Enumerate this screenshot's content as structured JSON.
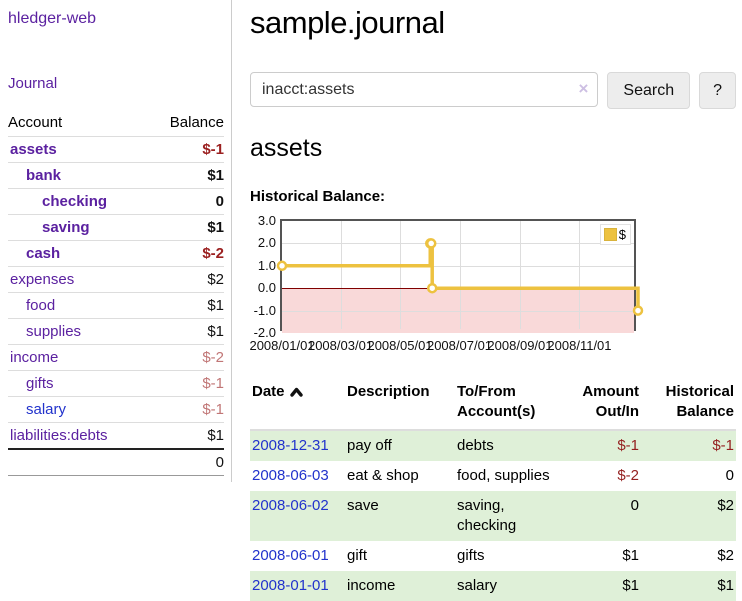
{
  "colors": {
    "link_purple": "#5b21a0",
    "link_blue": "#2233cc",
    "negative_dark": "#9b2020",
    "negative_light": "#c17676",
    "register_negative": "#941f1f",
    "row_stripe_green": "#dff0d8",
    "series_gold": "#edc240"
  },
  "sidebar": {
    "brand": "hledger-web",
    "journal_label": "Journal",
    "accounts": {
      "headers": {
        "account": "Account",
        "balance": "Balance"
      },
      "rows": [
        {
          "label": "assets",
          "indent": 0,
          "bold": true,
          "balance": "$-1",
          "amount_color": "negative",
          "link_color": "purple"
        },
        {
          "label": "bank",
          "indent": 1,
          "bold": true,
          "balance": "$1",
          "amount_color": "normal",
          "link_color": "purple"
        },
        {
          "label": "checking",
          "indent": 2,
          "bold": true,
          "balance": "0",
          "amount_color": "normal",
          "link_color": "purple"
        },
        {
          "label": "saving",
          "indent": 2,
          "bold": true,
          "balance": "$1",
          "amount_color": "normal",
          "link_color": "purple"
        },
        {
          "label": "cash",
          "indent": 1,
          "bold": true,
          "balance": "$-2",
          "amount_color": "negative",
          "link_color": "purple"
        },
        {
          "label": "expenses",
          "indent": 0,
          "bold": false,
          "balance": "$2",
          "amount_color": "normal",
          "link_color": "purple"
        },
        {
          "label": "food",
          "indent": 1,
          "bold": false,
          "balance": "$1",
          "amount_color": "normal",
          "link_color": "purple"
        },
        {
          "label": "supplies",
          "indent": 1,
          "bold": false,
          "balance": "$1",
          "amount_color": "normal",
          "link_color": "purple"
        },
        {
          "label": "income",
          "indent": 0,
          "bold": false,
          "balance": "$-2",
          "amount_color": "negative-light",
          "link_color": "purple"
        },
        {
          "label": "gifts",
          "indent": 1,
          "bold": false,
          "balance": "$-1",
          "amount_color": "negative-light",
          "link_color": "purple"
        },
        {
          "label": "salary",
          "indent": 1,
          "bold": false,
          "balance": "$-1",
          "amount_color": "negative-light",
          "link_color": "blue"
        },
        {
          "label": "liabilities:debts",
          "indent": 0,
          "bold": false,
          "balance": "$1",
          "amount_color": "normal",
          "link_color": "purple"
        }
      ],
      "total": "0"
    }
  },
  "main": {
    "title": "sample.journal",
    "search": {
      "value": "inacct:assets",
      "clear_icon": "×",
      "search_button": "Search",
      "help_button": "?"
    },
    "account_heading": "assets",
    "chart_label": "Historical Balance:"
  },
  "chart_data": {
    "type": "line",
    "title": "Historical Balance",
    "step": true,
    "series": [
      {
        "name": "$",
        "color": "#edc240",
        "points": [
          [
            "2008-01-01",
            1
          ],
          [
            "2008-06-01",
            2
          ],
          [
            "2008-06-02",
            2
          ],
          [
            "2008-06-03",
            0
          ],
          [
            "2008-12-31",
            -1
          ]
        ]
      }
    ],
    "xlim": [
      "2008-01-01",
      "2008-12-31"
    ],
    "ylim": [
      -2,
      3
    ],
    "yticks": [
      "3.0",
      "2.0",
      "1.0",
      "0.0",
      "-1.0",
      "-2.0"
    ],
    "xticks": [
      "2008/01/01",
      "2008/03/01",
      "2008/05/01",
      "2008/07/01",
      "2008/09/01",
      "2008/11/01"
    ],
    "grid": true,
    "legend_position": "top-right",
    "negative_region_color": "#f9d9d9",
    "zero_line_color": "#800000"
  },
  "register": {
    "headers": {
      "date": "Date",
      "description": "Description",
      "accounts": "To/From Account(s)",
      "amount": "Amount Out/In",
      "balance": "Historical Balance"
    },
    "sort": {
      "column": "date",
      "direction": "ascending-arrow"
    },
    "rows": [
      {
        "date": "2008-12-31",
        "description": "pay off",
        "accounts": "debts",
        "amount": "$-1",
        "amount_negative": true,
        "balance": "$-1",
        "balance_negative": true
      },
      {
        "date": "2008-06-03",
        "description": "eat & shop",
        "accounts": "food, supplies",
        "amount": "$-2",
        "amount_negative": true,
        "balance": "0",
        "balance_negative": false
      },
      {
        "date": "2008-06-02",
        "description": "save",
        "accounts": "saving, checking",
        "amount": "0",
        "amount_negative": false,
        "balance": "$2",
        "balance_negative": false
      },
      {
        "date": "2008-06-01",
        "description": "gift",
        "accounts": "gifts",
        "amount": "$1",
        "amount_negative": false,
        "balance": "$2",
        "balance_negative": false
      },
      {
        "date": "2008-01-01",
        "description": "income",
        "accounts": "salary",
        "amount": "$1",
        "amount_negative": false,
        "balance": "$1",
        "balance_negative": false
      }
    ]
  }
}
